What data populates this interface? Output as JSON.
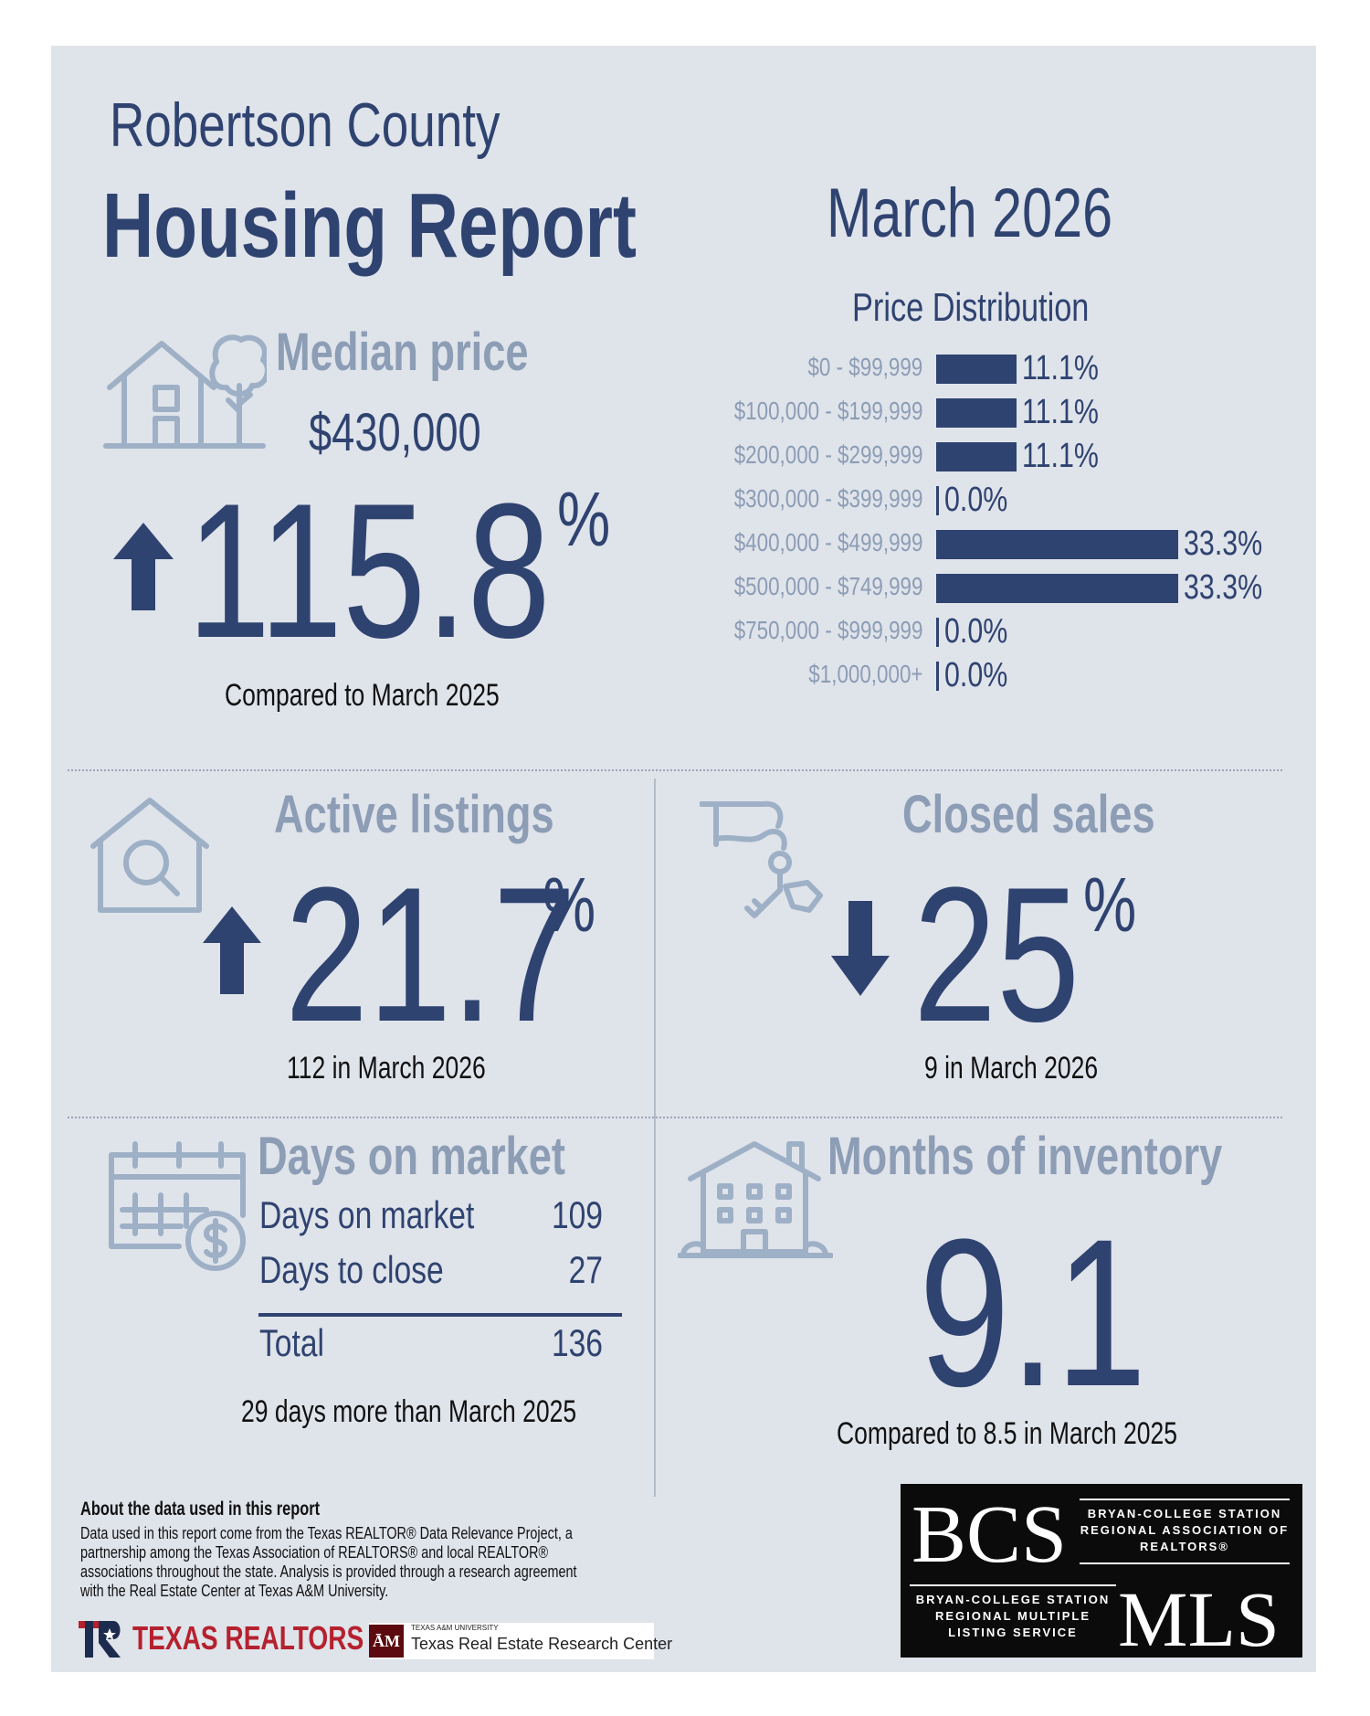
{
  "header": {
    "county": "Robertson County",
    "report_title": "Housing Report",
    "month": "March 2026"
  },
  "median_price": {
    "title": "Median price",
    "price": "$430,000",
    "change_value": "115.8",
    "change_unit": "%",
    "direction": "up",
    "caption": "Compared to March 2025"
  },
  "price_distribution": {
    "title": "Price Distribution",
    "chart_data": {
      "type": "bar",
      "orientation": "horizontal",
      "categories": [
        "$0 - $99,999",
        "$100,000 - $199,999",
        "$200,000 - $299,999",
        "$300,000 - $399,999",
        "$400,000 - $499,999",
        "$500,000 - $749,999",
        "$750,000 - $999,999",
        "$1,000,000+"
      ],
      "values": [
        11.1,
        11.1,
        11.1,
        0.0,
        33.3,
        33.3,
        0.0,
        0.0
      ],
      "value_labels": [
        "11.1%",
        "11.1%",
        "11.1%",
        "0.0%",
        "33.3%",
        "33.3%",
        "0.0%",
        "0.0%"
      ],
      "title": "Price Distribution",
      "xlim": [
        0,
        33.3
      ]
    }
  },
  "active_listings": {
    "title": "Active listings",
    "change_value": "21.7",
    "change_unit": "%",
    "direction": "up",
    "caption": "112 in March 2026"
  },
  "closed_sales": {
    "title": "Closed sales",
    "change_value": "25",
    "change_unit": "%",
    "direction": "down",
    "caption": "9 in March 2026"
  },
  "days_on_market": {
    "title": "Days on market",
    "rows": [
      {
        "label": "Days on market",
        "value": "109"
      },
      {
        "label": "Days to close",
        "value": "27"
      }
    ],
    "total_label": "Total",
    "total_value": "136",
    "caption": "29 days more than March 2025"
  },
  "months_inventory": {
    "title": "Months of inventory",
    "value": "9.1",
    "caption": "Compared to 8.5 in March 2025"
  },
  "about": {
    "title": "About the data used in this report",
    "body": "Data used in this report come from the Texas REALTOR® Data Relevance Project, a partnership among the Texas Association of REALTORS® and local REALTOR® associations throughout the state. Analysis is provided through a research agreement with the Real Estate Center at Texas A&M University."
  },
  "logos": {
    "texas_realtors": "TEXAS REALTORS",
    "tamu_small": "TEXAS A&M UNIVERSITY",
    "tamu_name": "Texas Real Estate Research Center",
    "bcs": "BCS",
    "bcs_name": "BRYAN-COLLEGE STATION REGIONAL ASSOCIATION OF REALTORS®",
    "mls": "MLS",
    "mls_name": "BRYAN-COLLEGE STATION REGIONAL MULTIPLE LISTING SERVICE"
  },
  "colors": {
    "navy": "#2f4370",
    "muted": "#8c9db5",
    "panel": "#dfe3ea"
  }
}
